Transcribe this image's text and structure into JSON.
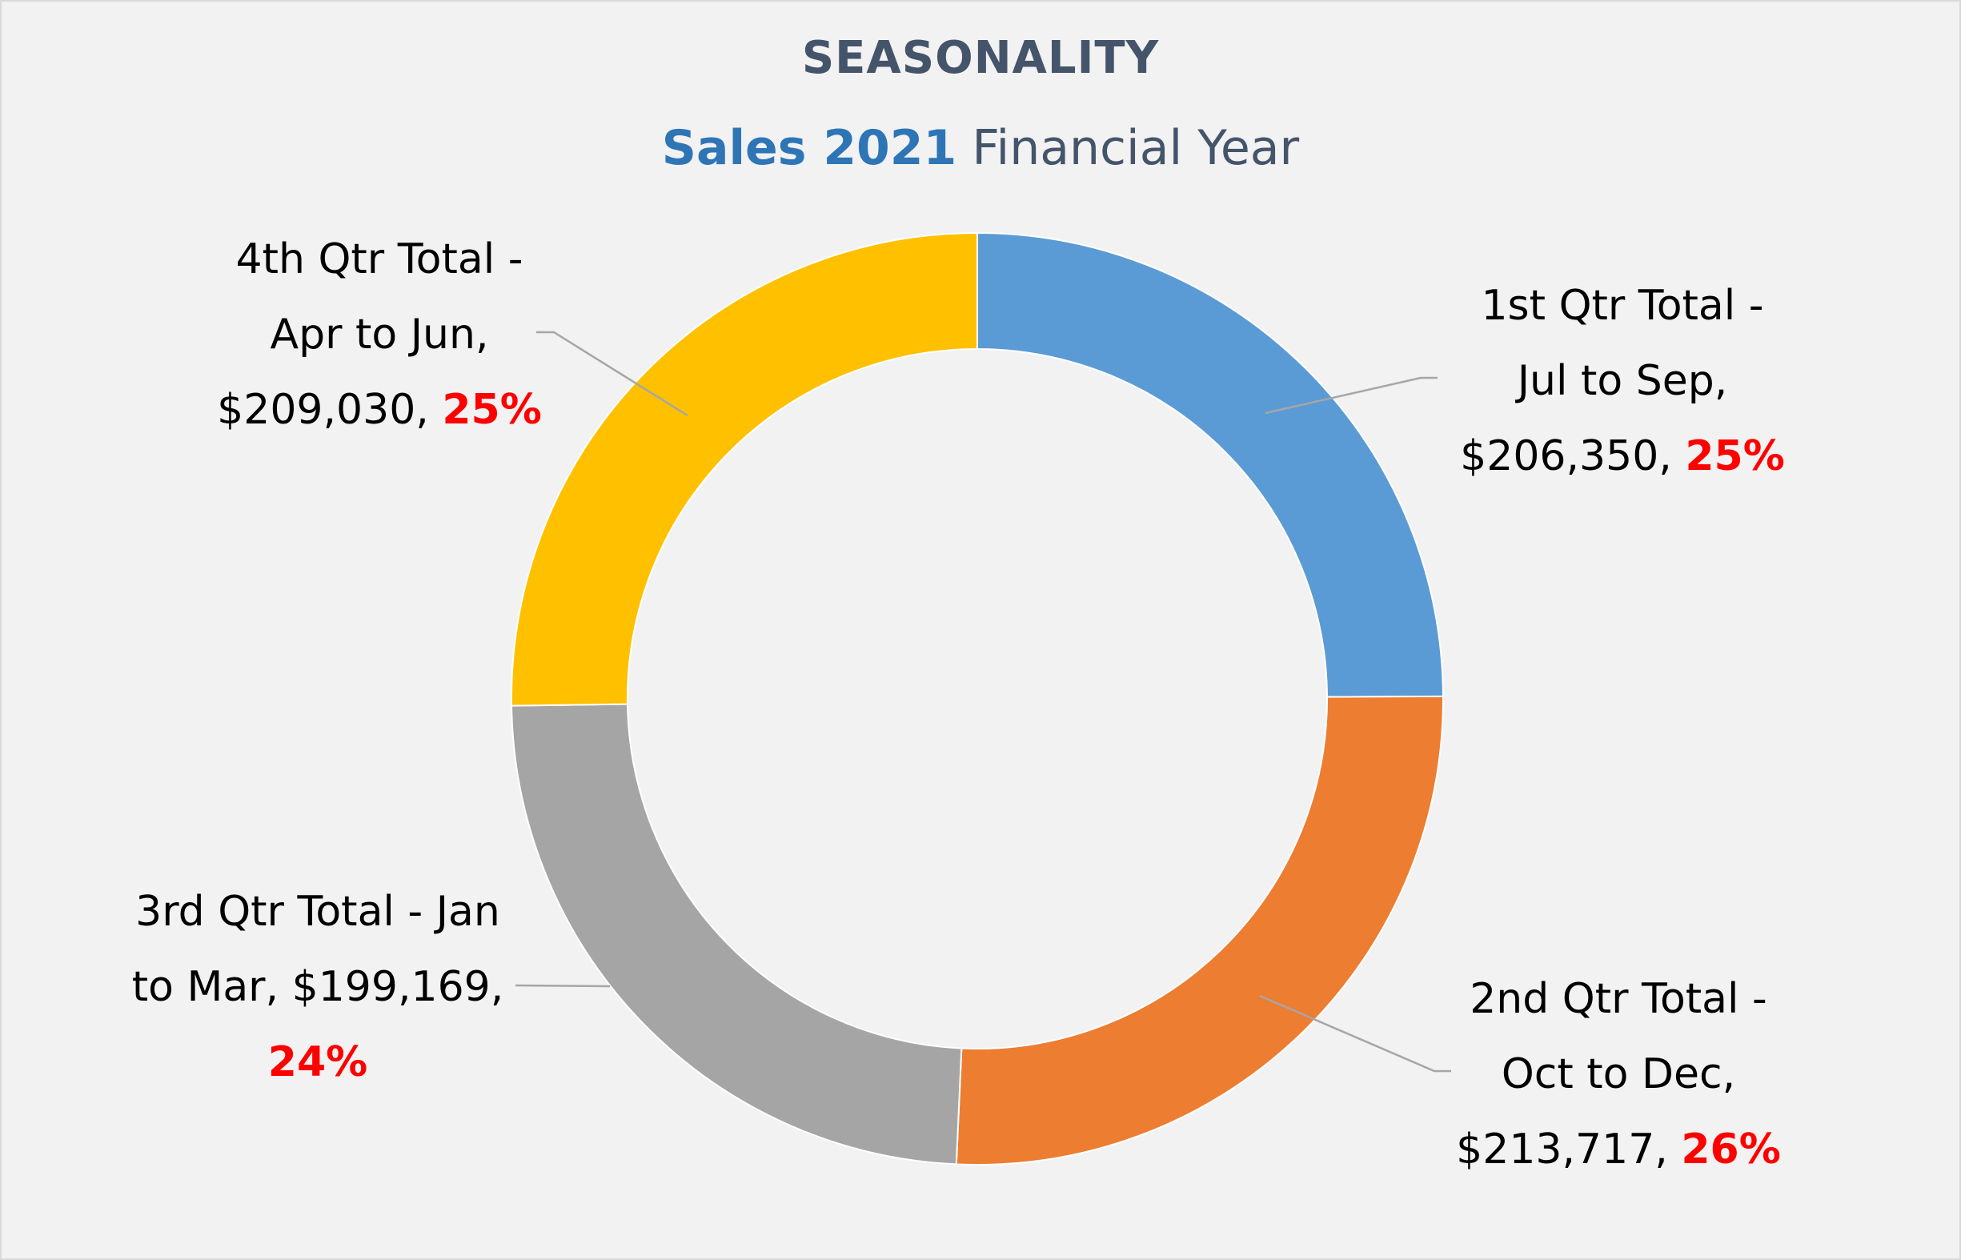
{
  "chart_data": {
    "type": "pie",
    "variant": "donut",
    "title": "SEASONALITY",
    "subtitle": {
      "strong": "Sales 2021",
      "rest": "Financial Year"
    },
    "start_angle_deg": 0,
    "direction": "clockwise",
    "slices": [
      {
        "category": "1st Qtr Total - Jul to Sep",
        "value": 206350,
        "percent": 25,
        "color": "#5b9bd5",
        "label_lines": [
          "1st Qtr Total -",
          "Jul to Sep,"
        ],
        "label_value_text": "$206,350,",
        "label_percent_text": "25%"
      },
      {
        "category": "2nd Qtr Total - Oct to Dec",
        "value": 213717,
        "percent": 26,
        "color": "#ed7d31",
        "label_lines": [
          "2nd Qtr Total -",
          "Oct to Dec,"
        ],
        "label_value_text": "$213,717,",
        "label_percent_text": "26%"
      },
      {
        "category": "3rd Qtr Total - Jan to Mar",
        "value": 199169,
        "percent": 24,
        "color": "#a5a5a5",
        "label_lines": [
          "3rd Qtr Total - Jan",
          "to Mar, $199,169,"
        ],
        "label_value_text": "",
        "label_percent_text": "24%"
      },
      {
        "category": "4th Qtr Total - Apr to Jun",
        "value": 209030,
        "percent": 25,
        "color": "#ffc000",
        "label_lines": [
          "4th Qtr Total -",
          "Apr to Jun,"
        ],
        "label_value_text": "$209,030,",
        "label_percent_text": "25%"
      }
    ],
    "legend": "none",
    "leader_lines": true
  }
}
